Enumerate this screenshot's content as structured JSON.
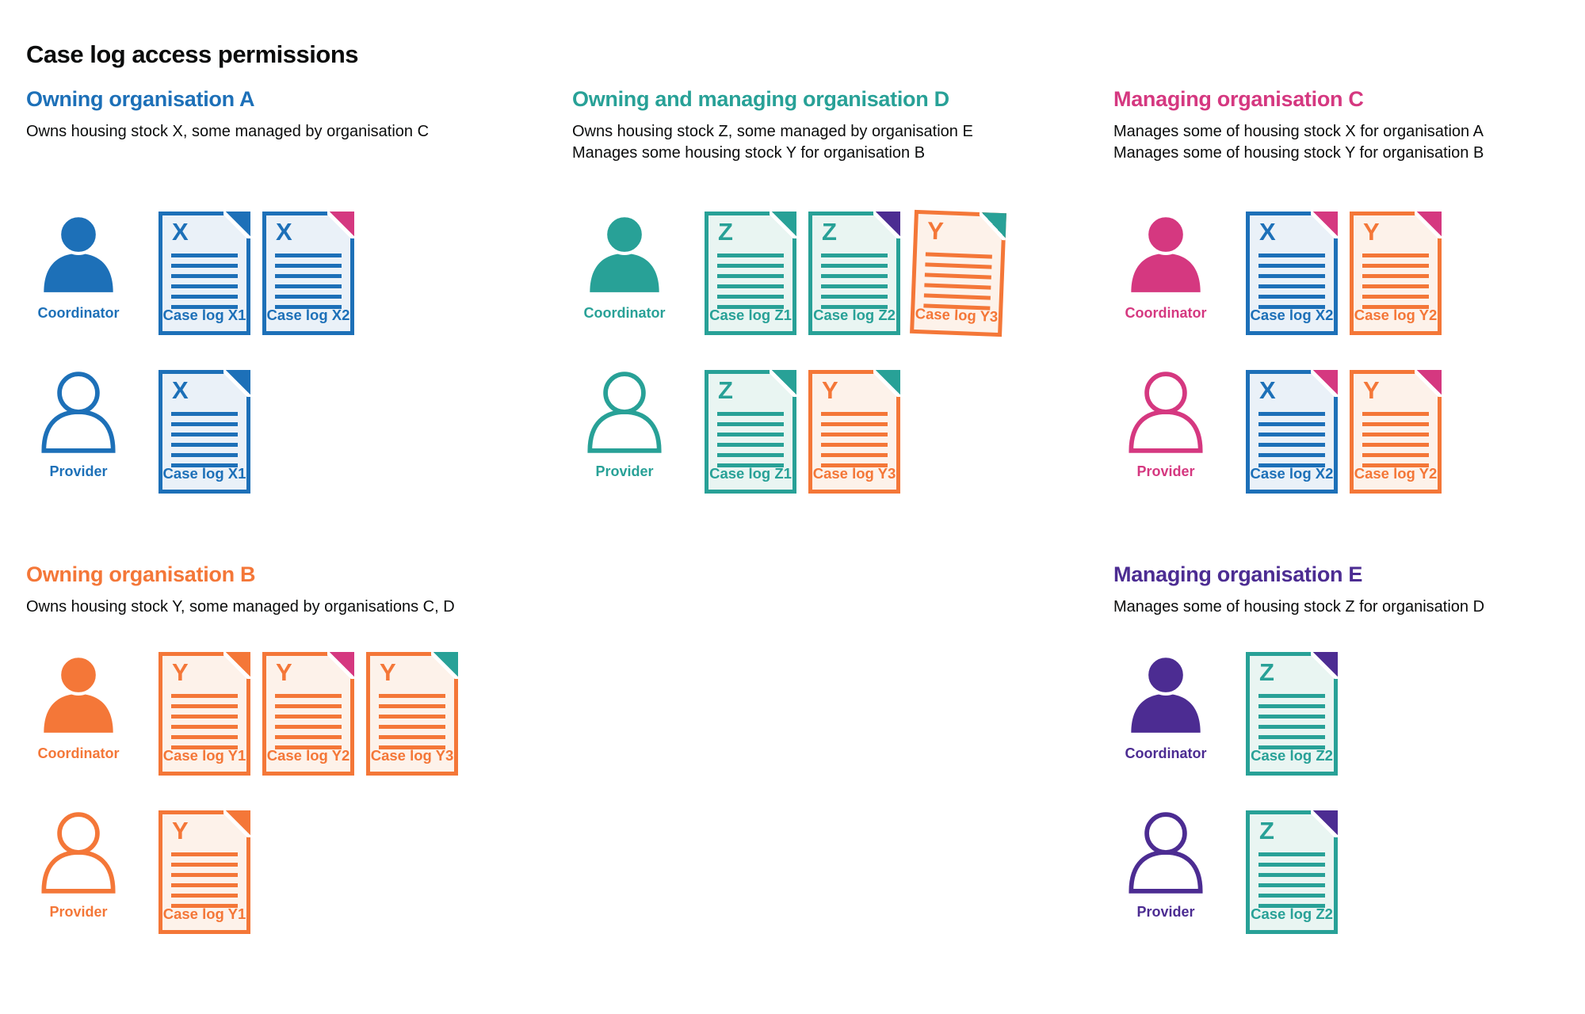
{
  "page_title": "Case log access permissions",
  "palette": {
    "blue": {
      "main": "#1d70b8",
      "tint": "#eaf1f8"
    },
    "teal": {
      "main": "#28a197",
      "tint": "#e9f5f2"
    },
    "pink": {
      "main": "#d53880",
      "tint": "#fbebf2"
    },
    "orange": {
      "main": "#f47738",
      "tint": "#fdf2ea"
    },
    "purple": {
      "main": "#4c2c92",
      "tint": "#edeaf4"
    },
    "text": {
      "main": "#0b0c0c",
      "tint": "#ffffff"
    }
  },
  "sections": [
    {
      "id": "org-a",
      "layout": "top",
      "color": "blue",
      "title": "Owning organisation A",
      "description": [
        "Owns housing stock X, some managed by organisation C"
      ],
      "rows": [
        {
          "role": "coordinator",
          "role_label": "Coordinator",
          "person_style": "filled",
          "docs": [
            {
              "letter": "X",
              "label": "Case log X1",
              "color": "blue",
              "fold": "blue"
            },
            {
              "letter": "X",
              "label": "Case log X2",
              "color": "blue",
              "fold": "pink"
            }
          ]
        },
        {
          "role": "provider",
          "role_label": "Provider",
          "person_style": "outline",
          "docs": [
            {
              "letter": "X",
              "label": "Case log X1",
              "color": "blue",
              "fold": "blue"
            }
          ]
        }
      ]
    },
    {
      "id": "org-d",
      "layout": "top",
      "color": "teal",
      "title": "Owning and managing organisation D",
      "description": [
        "Owns housing stock Z, some managed by organisation E",
        "Manages some housing stock Y for organisation B"
      ],
      "rows": [
        {
          "role": "coordinator",
          "role_label": "Coordinator",
          "person_style": "filled",
          "docs": [
            {
              "letter": "Z",
              "label": "Case log Z1",
              "color": "teal",
              "fold": "teal"
            },
            {
              "letter": "Z",
              "label": "Case log Z2",
              "color": "teal",
              "fold": "purple"
            },
            {
              "letter": "Y",
              "label": "Case log Y3",
              "color": "orange",
              "fold": "teal",
              "tilt": true
            }
          ]
        },
        {
          "role": "provider",
          "role_label": "Provider",
          "person_style": "outline",
          "docs": [
            {
              "letter": "Z",
              "label": "Case log Z1",
              "color": "teal",
              "fold": "teal"
            },
            {
              "letter": "Y",
              "label": "Case log Y3",
              "color": "orange",
              "fold": "teal"
            }
          ]
        }
      ]
    },
    {
      "id": "org-c",
      "layout": "top",
      "color": "pink",
      "title": "Managing organisation C",
      "description": [
        "Manages some of housing stock X for organisation A",
        "Manages some of housing stock Y for organisation B"
      ],
      "rows": [
        {
          "role": "coordinator",
          "role_label": "Coordinator",
          "person_style": "filled",
          "docs": [
            {
              "letter": "X",
              "label": "Case log X2",
              "color": "blue",
              "fold": "pink"
            },
            {
              "letter": "Y",
              "label": "Case log Y2",
              "color": "orange",
              "fold": "pink"
            }
          ]
        },
        {
          "role": "provider",
          "role_label": "Provider",
          "person_style": "outline",
          "docs": [
            {
              "letter": "X",
              "label": "Case log X2",
              "color": "blue",
              "fold": "pink"
            },
            {
              "letter": "Y",
              "label": "Case log Y2",
              "color": "orange",
              "fold": "pink"
            }
          ]
        }
      ]
    },
    {
      "id": "org-b",
      "layout": "bottom",
      "color": "orange",
      "title": "Owning organisation B",
      "description": [
        "Owns housing stock Y, some managed by organisations C, D"
      ],
      "rows": [
        {
          "role": "coordinator",
          "role_label": "Coordinator",
          "person_style": "filled",
          "docs": [
            {
              "letter": "Y",
              "label": "Case log Y1",
              "color": "orange",
              "fold": "orange"
            },
            {
              "letter": "Y",
              "label": "Case log Y2",
              "color": "orange",
              "fold": "pink"
            },
            {
              "letter": "Y",
              "label": "Case log Y3",
              "color": "orange",
              "fold": "teal"
            }
          ]
        },
        {
          "role": "provider",
          "role_label": "Provider",
          "person_style": "outline",
          "docs": [
            {
              "letter": "Y",
              "label": "Case log Y1",
              "color": "orange",
              "fold": "orange"
            }
          ]
        }
      ]
    },
    {
      "id": "org-e",
      "layout": "bottom",
      "color": "purple",
      "title": "Managing organisation E",
      "description": [
        "Manages some of housing stock Z for organisation D"
      ],
      "rows": [
        {
          "role": "coordinator",
          "role_label": "Coordinator",
          "person_style": "filled",
          "docs": [
            {
              "letter": "Z",
              "label": "Case log Z2",
              "color": "teal",
              "fold": "purple"
            }
          ]
        },
        {
          "role": "provider",
          "role_label": "Provider",
          "person_style": "outline",
          "docs": [
            {
              "letter": "Z",
              "label": "Case log Z2",
              "color": "teal",
              "fold": "purple"
            }
          ]
        }
      ]
    }
  ]
}
